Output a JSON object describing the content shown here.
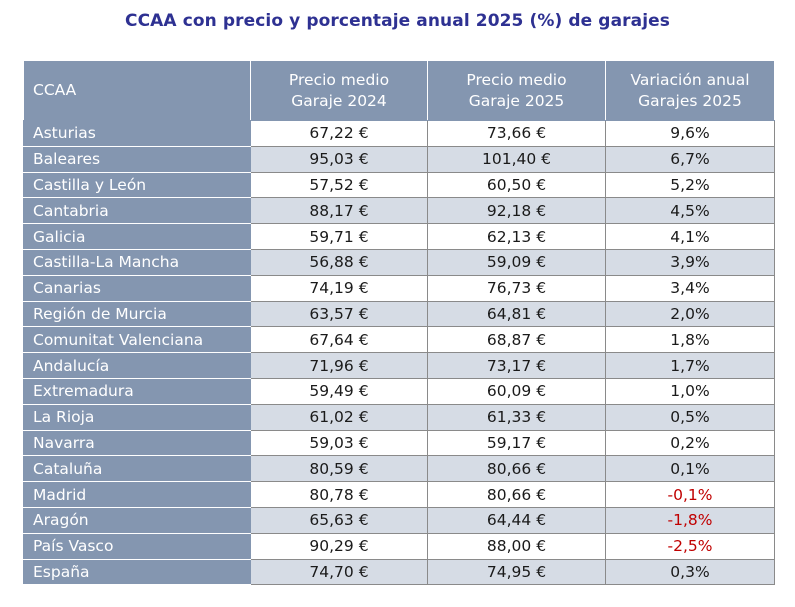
{
  "title": "CCAA con precio y porcentaje anual 2025 (%) de garajes",
  "headers": {
    "col0": "CCAA",
    "col1_line1": "Precio medio",
    "col1_line2": "Garaje 2024",
    "col2_line1": "Precio medio",
    "col2_line2": "Garaje 2025",
    "col3_line1": "Variación anual",
    "col3_line2": "Garajes 2025"
  },
  "rows": [
    {
      "name": "Asturias",
      "p2024": "67,22 €",
      "p2025": "73,66 €",
      "var": "9,6%"
    },
    {
      "name": "Baleares",
      "p2024": "95,03 €",
      "p2025": "101,40 €",
      "var": "6,7%"
    },
    {
      "name": "Castilla y León",
      "p2024": "57,52 €",
      "p2025": "60,50 €",
      "var": "5,2%"
    },
    {
      "name": "Cantabria",
      "p2024": "88,17 €",
      "p2025": "92,18 €",
      "var": "4,5%"
    },
    {
      "name": "Galicia",
      "p2024": "59,71 €",
      "p2025": "62,13 €",
      "var": "4,1%"
    },
    {
      "name": "Castilla-La Mancha",
      "p2024": "56,88 €",
      "p2025": "59,09 €",
      "var": "3,9%"
    },
    {
      "name": "Canarias",
      "p2024": "74,19 €",
      "p2025": "76,73 €",
      "var": "3,4%"
    },
    {
      "name": "Región de Murcia",
      "p2024": "63,57 €",
      "p2025": "64,81 €",
      "var": "2,0%"
    },
    {
      "name": "Comunitat Valenciana",
      "p2024": "67,64 €",
      "p2025": "68,87 €",
      "var": "1,8%"
    },
    {
      "name": "Andalucía",
      "p2024": "71,96 €",
      "p2025": "73,17 €",
      "var": "1,7%"
    },
    {
      "name": "Extremadura",
      "p2024": "59,49 €",
      "p2025": "60,09 €",
      "var": "1,0%"
    },
    {
      "name": "La Rioja",
      "p2024": "61,02 €",
      "p2025": "61,33 €",
      "var": "0,5%"
    },
    {
      "name": "Navarra",
      "p2024": "59,03 €",
      "p2025": "59,17 €",
      "var": "0,2%"
    },
    {
      "name": "Cataluña",
      "p2024": "80,59 €",
      "p2025": "80,66 €",
      "var": "0,1%"
    },
    {
      "name": "Madrid",
      "p2024": "80,78 €",
      "p2025": "80,66 €",
      "var": "-0,1%"
    },
    {
      "name": "Aragón",
      "p2024": "65,63 €",
      "p2025": "64,44 €",
      "var": "-1,8%"
    },
    {
      "name": "País Vasco",
      "p2024": "90,29 €",
      "p2025": "88,00 €",
      "var": "-2,5%"
    },
    {
      "name": "España",
      "p2024": "74,70 €",
      "p2025": "74,95 €",
      "var": "0,3%"
    }
  ],
  "colors": {
    "title": "#2e3192",
    "header_bg": "#8496b0",
    "alt_row_bg": "#d6dce5",
    "negative": "#c00000"
  }
}
